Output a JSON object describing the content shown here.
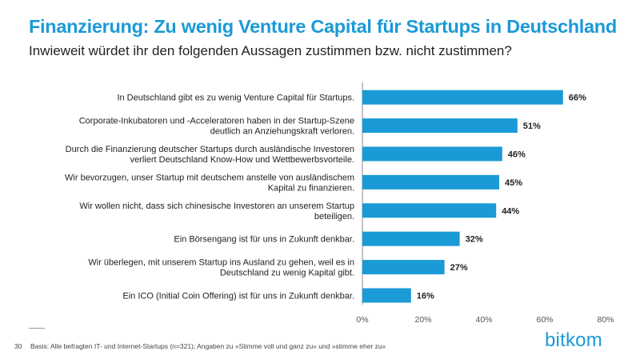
{
  "header": {
    "title": "Finanzierung: Zu wenig Venture Capital für Startups in Deutschland",
    "subtitle": "Inwieweit würdet ihr den folgenden Aussagen zustimmen bzw. nicht zustimmen?"
  },
  "footer": {
    "page_number": "30",
    "note": "Basis: Alle befragten IT- und Internet-Startups (n=321); Angaben zu »Stimme voll und ganz zu« und »stimme eher zu«",
    "logo": "bitkom"
  },
  "colors": {
    "accent": "#1a9ad6",
    "bar": "#1a9ad6",
    "text": "#222222"
  },
  "chart_data": {
    "type": "bar",
    "orientation": "horizontal",
    "categories": [
      [
        "In Deutschland gibt es zu wenig Venture Capital für Startups."
      ],
      [
        "Corporate-Inkubatoren und -Acceleratoren haben in der Startup-Szene",
        "deutlich an Anziehungskraft verloren."
      ],
      [
        "Durch die Finanzierung deutscher Startups durch ausländische Investoren",
        "verliert Deutschland Know-How und Wettbewerbsvorteile."
      ],
      [
        "Wir bevorzugen, unser Startup mit deutschem anstelle von ausländischem",
        "Kapital zu finanzieren."
      ],
      [
        "Wir wollen nicht, dass sich chinesische Investoren an unserem Startup",
        "beteiligen."
      ],
      [
        "Ein Börsengang ist für uns in Zukunft denkbar."
      ],
      [
        "Wir überlegen, mit unserem Startup ins Ausland zu gehen, weil es in",
        "Deutschland zu wenig Kapital gibt."
      ],
      [
        "Ein ICO (Initial Coin Offering) ist für uns in Zukunft denkbar."
      ]
    ],
    "values": [
      66,
      51,
      46,
      45,
      44,
      32,
      27,
      16
    ],
    "value_labels": [
      "66%",
      "51%",
      "46%",
      "45%",
      "44%",
      "32%",
      "27%",
      "16%"
    ],
    "xlim": [
      0,
      80
    ],
    "xticks": [
      0,
      20,
      40,
      60,
      80
    ],
    "xtick_labels": [
      "0%",
      "20%",
      "40%",
      "60%",
      "80%"
    ],
    "grid": false,
    "legend": "none"
  }
}
